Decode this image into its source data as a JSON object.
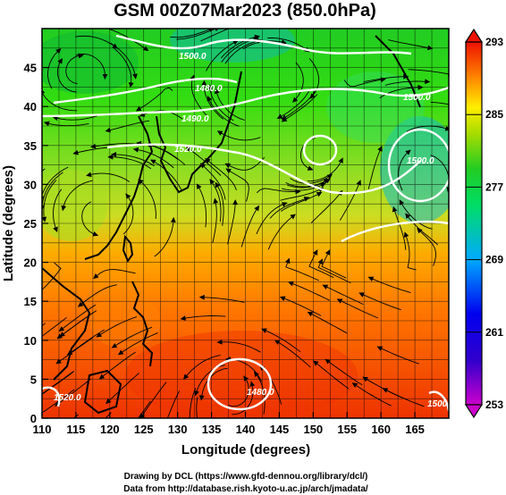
{
  "title": "GSM 00Z07Mar2023 (850.0hPa)",
  "xlabel": "Longitude (degrees)",
  "ylabel": "Latitude  (degrees)",
  "x_ticks": [
    110,
    115,
    120,
    125,
    130,
    135,
    140,
    145,
    150,
    155,
    160,
    165
  ],
  "y_ticks": [
    0,
    5,
    10,
    15,
    20,
    25,
    30,
    35,
    40,
    45
  ],
  "colorbar_ticks": [
    253,
    261,
    269,
    277,
    285,
    293
  ],
  "contour_labels": [
    "1500.0",
    "1480.0",
    "1490.0",
    "1520.0",
    "1500.0",
    "1500.0",
    "1520.0",
    "1480.0",
    "1500.0"
  ],
  "footer_line1": "Drawing by DCL (https://www.gfd-dennou.org/library/dcl/)",
  "footer_line2": "Data from http://database.rish.kyoto-u.ac.jp/arch/jmadata/",
  "map": {
    "lon_range": [
      110,
      170
    ],
    "lat_range": [
      0,
      50
    ],
    "variable_range": [
      253,
      293
    ],
    "grid": true,
    "colors": {
      "cold": "#cc00cc",
      "blue": "#0000dd",
      "cyan": "#00bbff",
      "green": "#22cc22",
      "yellow": "#eeee00",
      "orange": "#ff7700",
      "red": "#ee2200",
      "contour": "#ffffff",
      "streamline": "#000000"
    }
  }
}
